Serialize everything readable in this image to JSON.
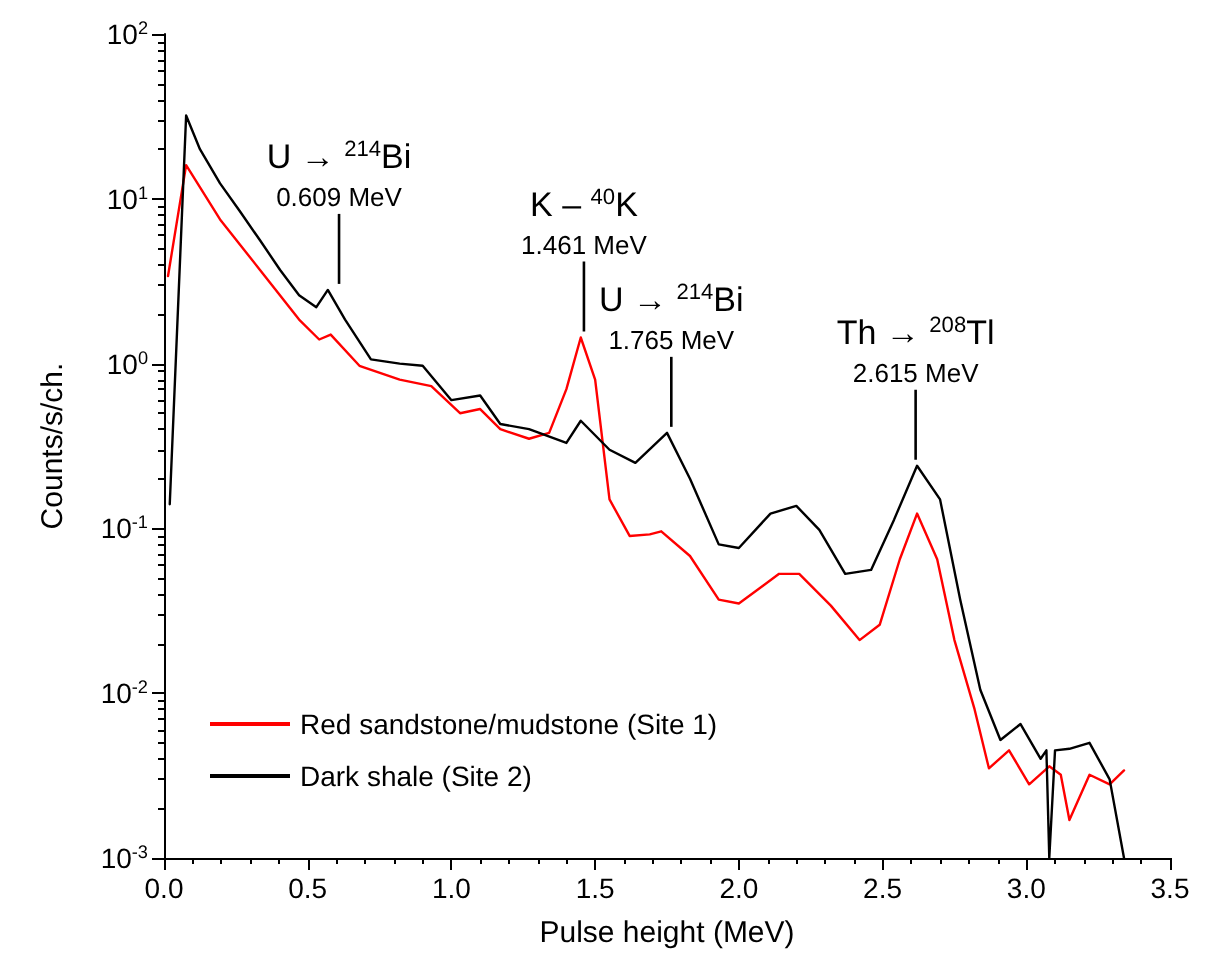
{
  "chart_data": {
    "type": "line",
    "xlabel": "Pulse height (MeV)",
    "ylabel": "Counts/s/ch.",
    "log": "y",
    "grid": false,
    "legend": "bottom left",
    "marker": "none",
    "line_style": "solid",
    "xlim": [
      0,
      3.5
    ],
    "xticks": [
      {
        "value": 0,
        "label": "0.0"
      },
      0.5,
      {
        "value": 1,
        "label": "1.0"
      },
      1.5,
      {
        "value": 2,
        "label": "2.0"
      },
      2.5,
      {
        "value": 3,
        "label": "3.0"
      },
      3.5
    ],
    "ylim": [
      0.001,
      100
    ],
    "yticks": [
      {
        "value": 0.001,
        "label": "10$^{-3}$"
      },
      {
        "value": 0.01,
        "label": "10$^{-2}$"
      },
      {
        "value": 0.1,
        "label": "10$^{-1}$"
      },
      {
        "value": 1,
        "label": "10$^{0}$"
      },
      {
        "value": 10,
        "label": "10$^{1}$"
      },
      {
        "value": 100,
        "label": "10$^{2}$"
      }
    ],
    "series": [
      {
        "name": "Red sandstone/mudstone (Site 1)",
        "color": "#ff0000",
        "x": [
          0.014,
          0.077,
          0.195,
          0.334,
          0.47,
          0.54,
          0.58,
          0.68,
          0.82,
          0.93,
          1.03,
          1.1,
          1.17,
          1.27,
          1.34,
          1.4,
          1.45,
          1.5,
          1.55,
          1.62,
          1.69,
          1.73,
          1.83,
          1.93,
          2.0,
          2.14,
          2.21,
          2.32,
          2.42,
          2.49,
          2.56,
          2.62,
          2.69,
          2.75,
          2.82,
          2.87,
          2.94,
          3.01,
          3.08,
          3.12,
          3.15,
          3.22,
          3.29,
          3.34
        ],
        "values": [
          3.4,
          16,
          7.5,
          3.7,
          1.85,
          1.4,
          1.5,
          0.97,
          0.8,
          0.73,
          0.5,
          0.53,
          0.4,
          0.35,
          0.38,
          0.7,
          1.44,
          0.8,
          0.15,
          0.09,
          0.092,
          0.096,
          0.068,
          0.037,
          0.035,
          0.053,
          0.053,
          0.034,
          0.021,
          0.026,
          0.065,
          0.123,
          0.065,
          0.021,
          0.008,
          0.0035,
          0.0045,
          0.0028,
          0.0036,
          0.0032,
          0.0017,
          0.0032,
          0.0028,
          0.0034
        ]
      },
      {
        "name": "Dark shale (Site 2)",
        "color": "#000000",
        "x": [
          0.02,
          0.077,
          0.125,
          0.195,
          0.264,
          0.334,
          0.404,
          0.47,
          0.53,
          0.57,
          0.63,
          0.72,
          0.82,
          0.9,
          1.0,
          1.1,
          1.17,
          1.27,
          1.4,
          1.45,
          1.55,
          1.64,
          1.75,
          1.83,
          1.93,
          2.0,
          2.11,
          2.2,
          2.28,
          2.37,
          2.46,
          2.54,
          2.62,
          2.7,
          2.77,
          2.84,
          2.91,
          2.98,
          3.05,
          3.07,
          3.08,
          3.1,
          3.15,
          3.22,
          3.29,
          3.34
        ],
        "values": [
          0.14,
          32,
          20,
          12.4,
          8.4,
          5.6,
          3.7,
          2.6,
          2.2,
          2.8,
          1.85,
          1.06,
          1.0,
          0.97,
          0.6,
          0.64,
          0.43,
          0.4,
          0.33,
          0.45,
          0.3,
          0.25,
          0.38,
          0.2,
          0.08,
          0.076,
          0.123,
          0.137,
          0.098,
          0.053,
          0.056,
          0.113,
          0.24,
          0.15,
          0.037,
          0.0105,
          0.0052,
          0.0065,
          0.004,
          0.0045,
          0.001,
          0.0045,
          0.0046,
          0.005,
          0.003,
          0.001
        ]
      }
    ],
    "annotations": [
      {
        "text": "U → $^{214}$Bi\n0.609 MeV",
        "x": 0.609,
        "y": 2.8
      },
      {
        "text": "K – $^{40}$K\n1.461 MeV",
        "x": 1.461,
        "y": 1.44
      },
      {
        "text": "U → $^{214}$Bi\n1.765 MeV",
        "x": 1.765,
        "y": 0.38
      },
      {
        "text": "Th → $^{208}$Tl\n2.615 MeV",
        "x": 2.615,
        "y": 0.24
      }
    ]
  }
}
